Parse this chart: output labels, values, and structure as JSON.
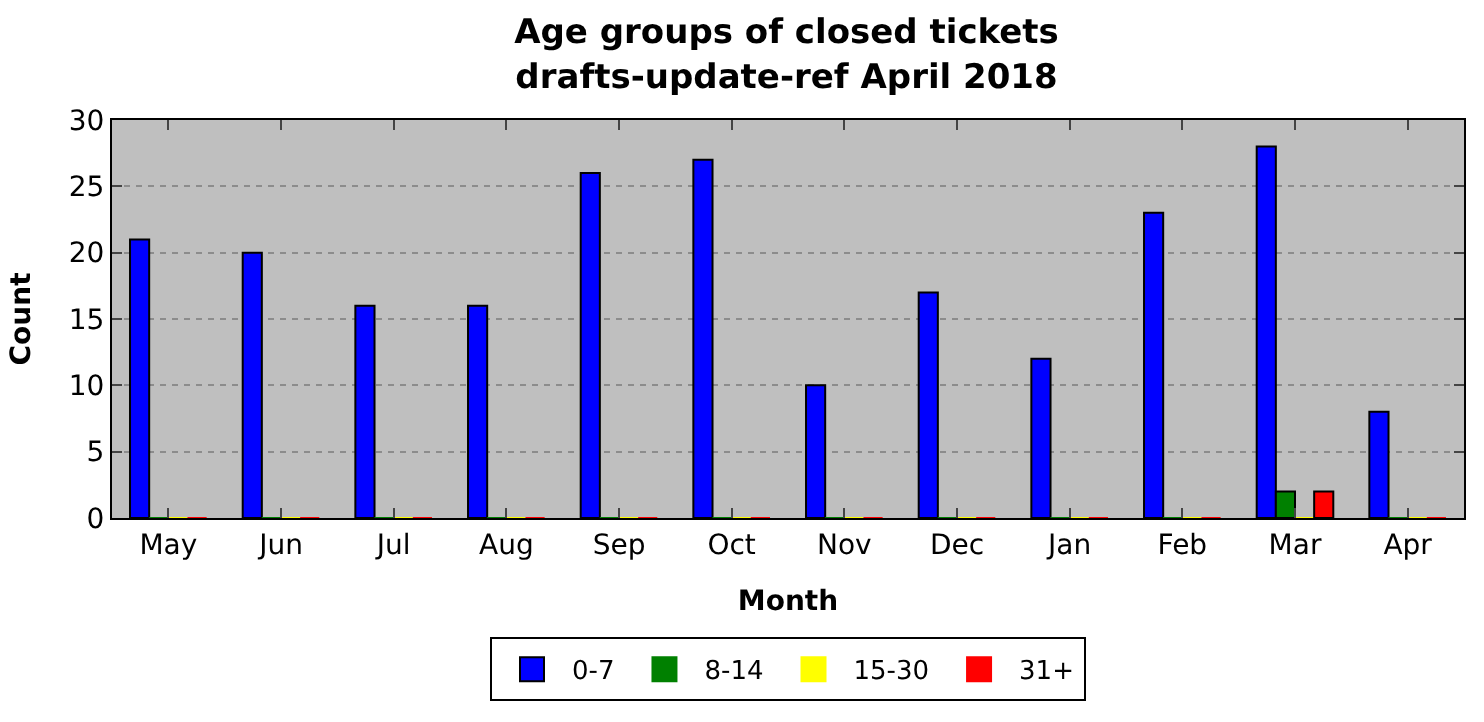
{
  "chart_data": {
    "type": "bar",
    "title": "Age groups of closed tickets\ndrafts-update-ref April 2018",
    "xlabel": "Month",
    "ylabel": "Count",
    "categories": [
      "May",
      "Jun",
      "Jul",
      "Aug",
      "Sep",
      "Oct",
      "Nov",
      "Dec",
      "Jan",
      "Feb",
      "Mar",
      "Apr"
    ],
    "series": [
      {
        "name": "0-7",
        "color": "#0000ff",
        "values": [
          21,
          20,
          16,
          16,
          26,
          27,
          10,
          17,
          12,
          23,
          28,
          8
        ]
      },
      {
        "name": "8-14",
        "color": "#008000",
        "values": [
          0,
          0,
          0,
          0,
          0,
          0,
          0,
          0,
          0,
          0,
          2,
          0
        ]
      },
      {
        "name": "15-30",
        "color": "#ffff00",
        "values": [
          0,
          0,
          0,
          0,
          0,
          0,
          0,
          0,
          0,
          0,
          0,
          0
        ]
      },
      {
        "name": "31+",
        "color": "#ff0000",
        "values": [
          0,
          0,
          0,
          0,
          0,
          0,
          0,
          0,
          0,
          0,
          2,
          0
        ]
      }
    ],
    "ylim": [
      0,
      30
    ],
    "yticks": [
      0,
      5,
      10,
      15,
      20,
      25,
      30
    ],
    "grid": "y",
    "legend": "bottom"
  }
}
